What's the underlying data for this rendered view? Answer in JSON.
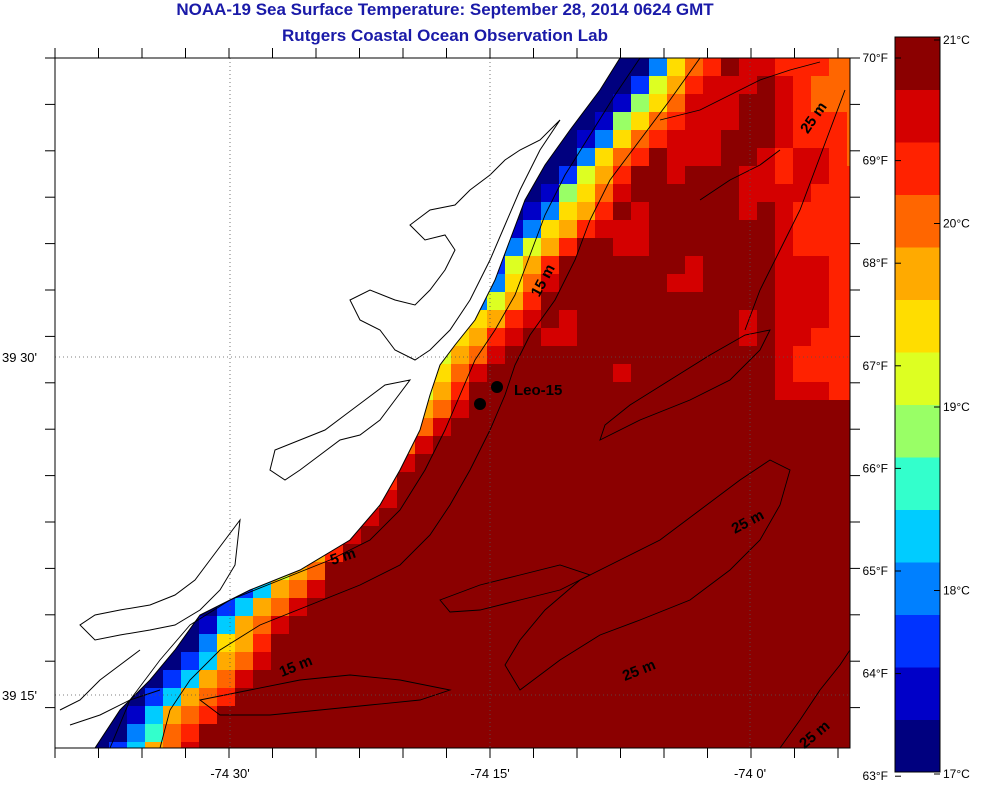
{
  "header": {
    "title": "NOAA-19 Sea Surface Temperature:  September 28, 2014 0624 GMT",
    "subtitle": "Rutgers Coastal Ocean Observation Lab"
  },
  "axes": {
    "x_ticks": [
      {
        "lon": -74.5,
        "label": "-74 30'"
      },
      {
        "lon": -74.25,
        "label": "-74 15'"
      },
      {
        "lon": -74.0,
        "label": "-74 0'"
      }
    ],
    "y_ticks": [
      {
        "lat": 39.5,
        "label": "39 30'"
      },
      {
        "lat": 39.25,
        "label": "39 15'"
      }
    ]
  },
  "station": {
    "name": "Leo-15",
    "lon": -74.24,
    "lat": 39.47
  },
  "contour_labels": [
    {
      "text": "15 m",
      "lon": -74.195,
      "lat": 39.555,
      "angle": -62
    },
    {
      "text": "5 m",
      "lon": -74.39,
      "lat": 39.349,
      "angle": -18
    },
    {
      "text": "15 m",
      "lon": -74.435,
      "lat": 39.268,
      "angle": -22
    },
    {
      "text": "25 m",
      "lon": -74.105,
      "lat": 39.265,
      "angle": -22
    },
    {
      "text": "25 m",
      "lon": -74.0,
      "lat": 39.375,
      "angle": -28
    },
    {
      "text": "25 m",
      "lon": -73.935,
      "lat": 39.675,
      "angle": -55
    },
    {
      "text": "25 m",
      "lon": -73.935,
      "lat": 39.218,
      "angle": -40
    }
  ],
  "colorbar": {
    "colors": [
      "#00007f",
      "#0000c8",
      "#0033ff",
      "#0080ff",
      "#00ccff",
      "#33ffcc",
      "#99ff66",
      "#ddff22",
      "#ffdd00",
      "#ffaa00",
      "#ff6600",
      "#ff2200",
      "#d40000",
      "#8b0000"
    ],
    "fahrenheit_labels": [
      "70°F",
      "69°F",
      "68°F",
      "67°F",
      "66°F",
      "65°F",
      "64°F",
      "63°F"
    ],
    "celsius_labels": [
      "21°C",
      "20°C",
      "19°C",
      "18°C",
      "17°C"
    ]
  }
}
